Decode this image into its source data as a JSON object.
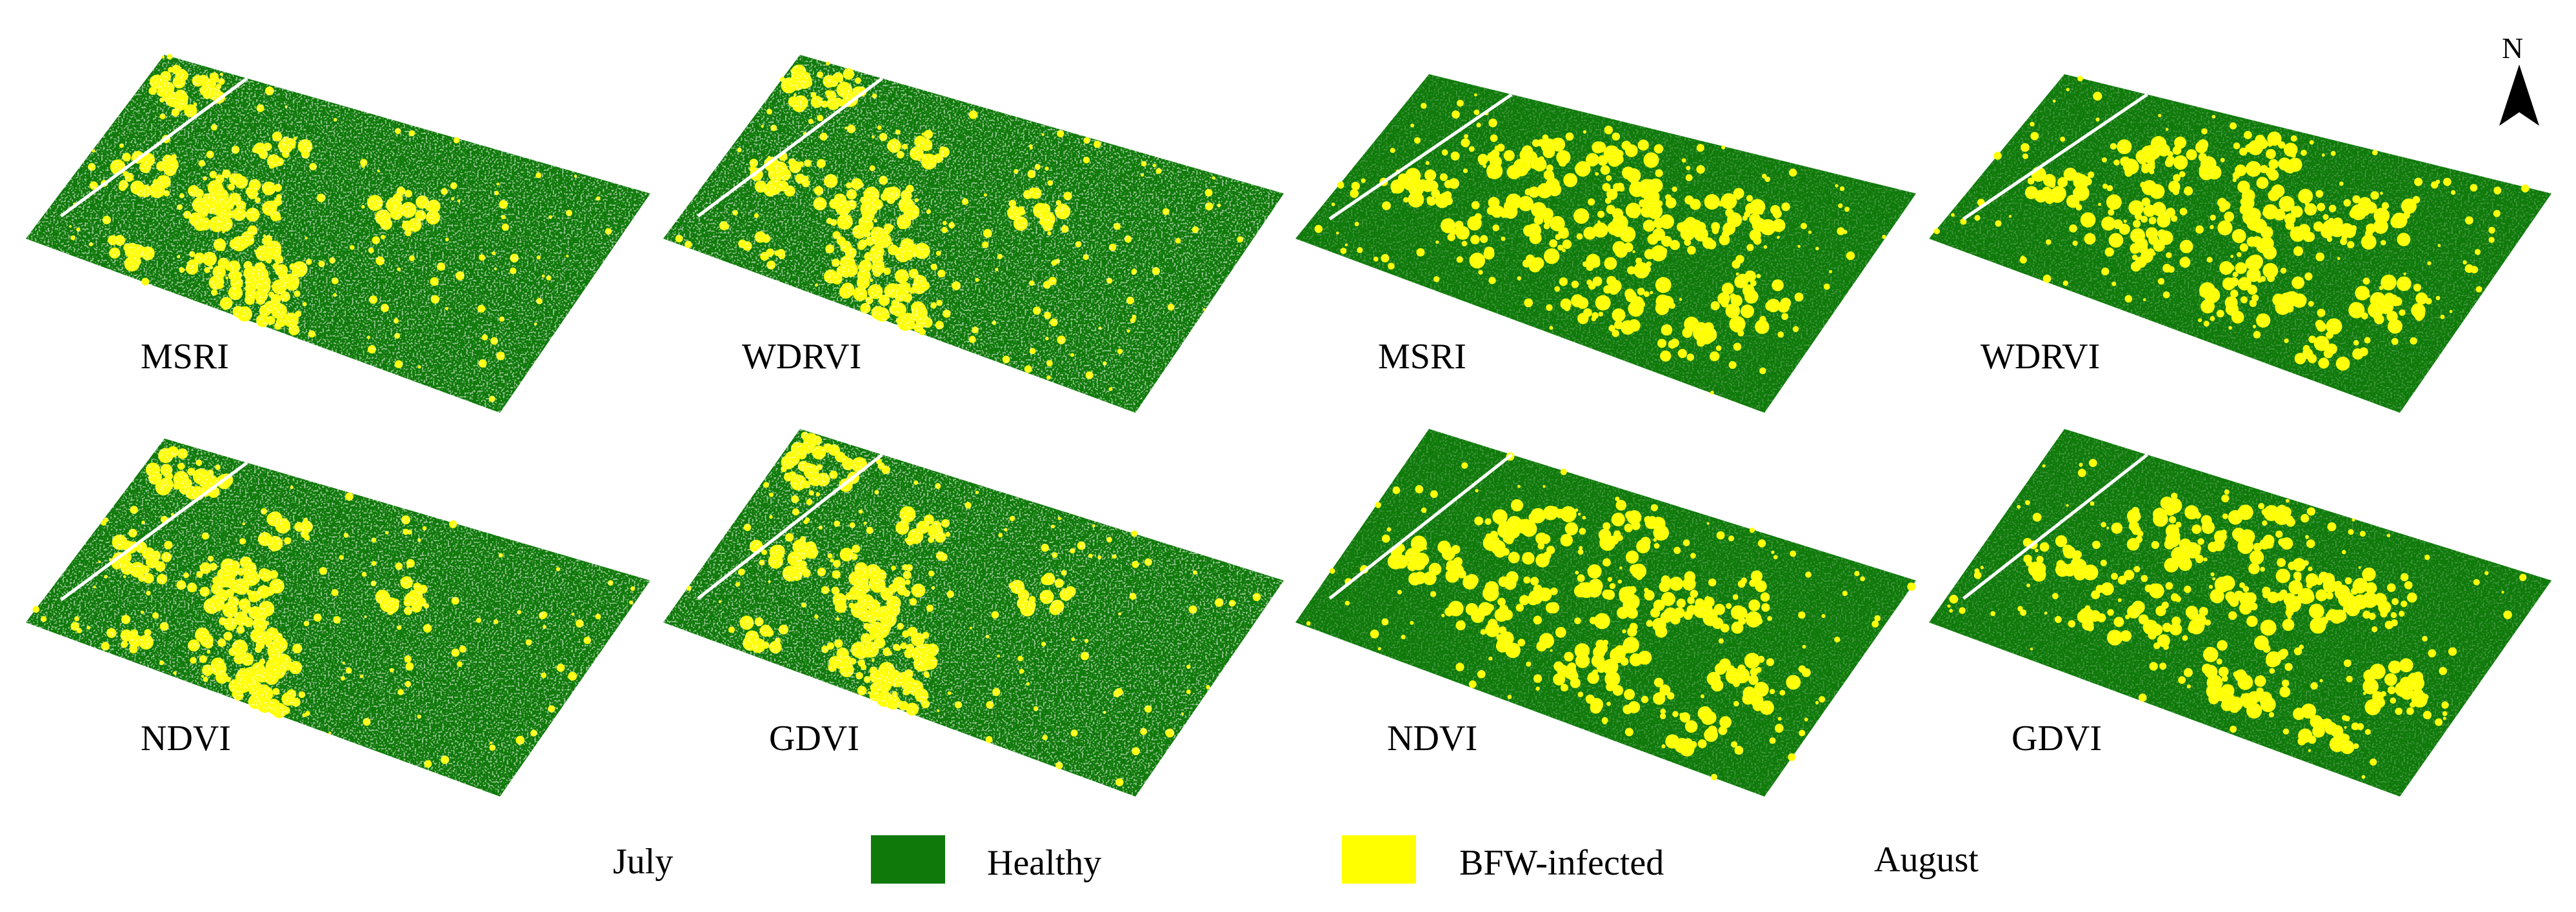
{
  "colors": {
    "healthy": "#0f7a0a",
    "infected": "#ffff00",
    "background": "#ffffff",
    "road": "#ffffff"
  },
  "maps": [
    {
      "month": "July",
      "index": "MSRI",
      "label": "MSRI"
    },
    {
      "month": "July",
      "index": "WDRVI",
      "label": "WDRVI"
    },
    {
      "month": "August",
      "index": "MSRI",
      "label": "MSRI"
    },
    {
      "month": "August",
      "index": "WDRVI",
      "label": "WDRVI"
    },
    {
      "month": "July",
      "index": "NDVI",
      "label": "NDVI"
    },
    {
      "month": "July",
      "index": "GDVI",
      "label": "GDVI"
    },
    {
      "month": "August",
      "index": "NDVI",
      "label": "NDVI"
    },
    {
      "month": "August",
      "index": "GDVI",
      "label": "GDVI"
    }
  ],
  "legend": {
    "july_label": "July",
    "healthy_label": "Healthy",
    "infected_label": "BFW-infected",
    "august_label": "August",
    "healthy_icon": "green-swatch",
    "infected_icon": "yellow-swatch"
  },
  "north_arrow": {
    "letter": "N",
    "icon": "north-arrow-icon"
  }
}
